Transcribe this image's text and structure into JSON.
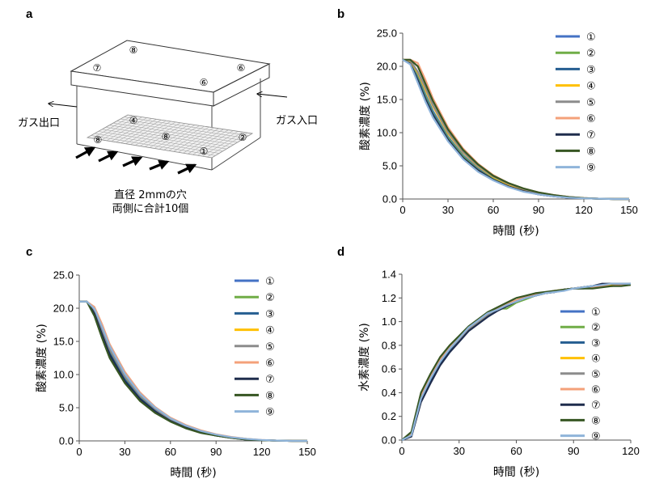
{
  "panels": [
    {
      "letter": "a"
    },
    {
      "letter": "b"
    },
    {
      "letter": "c"
    },
    {
      "letter": "d"
    }
  ],
  "diagram": {
    "gas_outlet": "ガス出口",
    "gas_inlet": "ガス入口",
    "caption_line1": "直径 2mmの穴",
    "caption_line2": "両側に合計10個",
    "lid_labels": [
      "⑦",
      "⑧",
      "⑥",
      "⑥"
    ],
    "floor_labels": [
      "⑧",
      "④",
      "⑧",
      "②",
      "①"
    ]
  },
  "legend_labels": [
    "①",
    "②",
    "③",
    "④",
    "⑤",
    "⑥",
    "⑦",
    "⑧",
    "⑨"
  ],
  "colors": [
    "#4472C4",
    "#70AD47",
    "#255E91",
    "#FFC000",
    "#8C8C8C",
    "#F4A17A",
    "#1F2D4D",
    "#375623",
    "#8FB4DA"
  ],
  "chart_data": [
    {
      "panel": "b",
      "type": "line",
      "xlabel": "時間 (秒)",
      "ylabel": "酸素濃度 (%)",
      "xlim": [
        0,
        150
      ],
      "ylim": [
        0,
        25
      ],
      "xticks": [
        "0",
        "30",
        "60",
        "90",
        "120",
        "150"
      ],
      "yticks": [
        "0.0",
        "5.0",
        "10.0",
        "15.0",
        "20.0",
        "25.0"
      ],
      "grid": false,
      "legend_position": "top-right",
      "x": [
        0,
        5,
        10,
        15,
        20,
        30,
        40,
        50,
        60,
        70,
        80,
        90,
        100,
        110,
        120,
        130,
        140,
        150
      ],
      "series": [
        {
          "name": "①",
          "values": [
            21,
            20.8,
            18.5,
            15.8,
            13.3,
            9.4,
            6.6,
            4.6,
            3.1,
            2.1,
            1.3,
            0.8,
            0.5,
            0.25,
            0.1,
            0.05,
            0,
            0
          ]
        },
        {
          "name": "②",
          "values": [
            21,
            20.6,
            18.2,
            15.5,
            13.0,
            9.2,
            6.4,
            4.4,
            3.0,
            2.0,
            1.3,
            0.8,
            0.5,
            0.25,
            0.1,
            0.05,
            0,
            0
          ]
        },
        {
          "name": "③",
          "values": [
            21,
            20.5,
            18.0,
            15.2,
            12.8,
            9.0,
            6.2,
            4.3,
            2.9,
            1.9,
            1.2,
            0.7,
            0.4,
            0.2,
            0.1,
            0.05,
            0,
            0
          ]
        },
        {
          "name": "④",
          "values": [
            21,
            20.8,
            19.0,
            16.5,
            14.0,
            9.9,
            7.0,
            4.9,
            3.3,
            2.2,
            1.4,
            0.9,
            0.55,
            0.3,
            0.1,
            0.05,
            0,
            0
          ]
        },
        {
          "name": "⑤",
          "values": [
            21,
            20.9,
            19.2,
            16.8,
            14.2,
            10.1,
            7.1,
            5.0,
            3.4,
            2.3,
            1.5,
            0.9,
            0.55,
            0.3,
            0.15,
            0.05,
            0,
            0
          ]
        },
        {
          "name": "⑥",
          "values": [
            21,
            21.0,
            20.5,
            18.0,
            15.2,
            10.8,
            7.6,
            5.3,
            3.6,
            2.4,
            1.6,
            1.0,
            0.6,
            0.3,
            0.15,
            0.05,
            0,
            0
          ]
        },
        {
          "name": "⑦",
          "values": [
            21,
            20.4,
            17.8,
            15.0,
            12.6,
            8.9,
            6.2,
            4.3,
            2.9,
            1.9,
            1.2,
            0.7,
            0.4,
            0.2,
            0.1,
            0.05,
            0,
            0
          ]
        },
        {
          "name": "⑧",
          "values": [
            21,
            21.0,
            20.0,
            17.4,
            14.8,
            10.5,
            7.4,
            5.2,
            3.5,
            2.4,
            1.6,
            1.0,
            0.6,
            0.3,
            0.15,
            0.05,
            0,
            0
          ]
        },
        {
          "name": "⑨",
          "values": [
            21,
            20.3,
            17.5,
            14.7,
            12.3,
            8.7,
            6.0,
            4.1,
            2.8,
            1.8,
            1.1,
            0.7,
            0.4,
            0.2,
            0.1,
            0.05,
            0,
            0
          ]
        }
      ]
    },
    {
      "panel": "c",
      "type": "line",
      "xlabel": "時間 (秒)",
      "ylabel": "酸素濃度 (%)",
      "xlim": [
        0,
        150
      ],
      "ylim": [
        0,
        25
      ],
      "xticks": [
        "0",
        "30",
        "60",
        "90",
        "120",
        "150"
      ],
      "yticks": [
        "0.0",
        "5.0",
        "10.0",
        "15.0",
        "20.0",
        "25.0"
      ],
      "grid": false,
      "legend_position": "top-right",
      "x": [
        0,
        5,
        10,
        15,
        20,
        30,
        40,
        50,
        60,
        70,
        80,
        90,
        100,
        110,
        120,
        130,
        140,
        150
      ],
      "series": [
        {
          "name": "①",
          "values": [
            21,
            21.0,
            19.5,
            16.5,
            13.5,
            9.5,
            6.7,
            4.7,
            3.2,
            2.1,
            1.4,
            0.9,
            0.5,
            0.25,
            0.1,
            0.05,
            0,
            0
          ]
        },
        {
          "name": "②",
          "values": [
            21,
            21.0,
            19.4,
            16.3,
            13.3,
            9.3,
            6.5,
            4.5,
            3.1,
            2.0,
            1.3,
            0.8,
            0.5,
            0.25,
            0.1,
            0.05,
            0,
            0
          ]
        },
        {
          "name": "③",
          "values": [
            21,
            21.0,
            19.3,
            16.2,
            13.2,
            9.2,
            6.4,
            4.5,
            3.0,
            2.0,
            1.3,
            0.8,
            0.5,
            0.2,
            0.1,
            0.05,
            0,
            0
          ]
        },
        {
          "name": "④",
          "values": [
            21,
            21.0,
            19.8,
            17.0,
            14.0,
            9.9,
            7.0,
            4.9,
            3.3,
            2.2,
            1.5,
            0.9,
            0.55,
            0.3,
            0.1,
            0.05,
            0,
            0
          ]
        },
        {
          "name": "⑤",
          "values": [
            21,
            21.0,
            19.7,
            16.8,
            13.8,
            9.7,
            6.8,
            4.8,
            3.2,
            2.2,
            1.4,
            0.9,
            0.5,
            0.25,
            0.1,
            0.05,
            0,
            0
          ]
        },
        {
          "name": "⑥",
          "values": [
            21,
            21.0,
            20.2,
            17.6,
            14.6,
            10.4,
            7.3,
            5.1,
            3.5,
            2.4,
            1.6,
            1.0,
            0.6,
            0.3,
            0.15,
            0.05,
            0,
            0
          ]
        },
        {
          "name": "⑦",
          "values": [
            21,
            21.0,
            19.2,
            16.0,
            13.0,
            9.0,
            6.3,
            4.4,
            3.0,
            2.0,
            1.3,
            0.8,
            0.45,
            0.2,
            0.1,
            0.05,
            0,
            0
          ]
        },
        {
          "name": "⑧",
          "values": [
            21,
            21.0,
            18.8,
            15.5,
            12.5,
            8.7,
            6.0,
            4.2,
            2.9,
            1.9,
            1.2,
            0.8,
            0.45,
            0.2,
            0.1,
            0.05,
            0,
            0
          ]
        },
        {
          "name": "⑨",
          "values": [
            21,
            21.0,
            19.9,
            17.2,
            14.3,
            10.1,
            7.1,
            5.0,
            3.4,
            2.3,
            1.5,
            0.95,
            0.55,
            0.3,
            0.15,
            0.05,
            0,
            0
          ]
        }
      ]
    },
    {
      "panel": "d",
      "type": "line",
      "xlabel": "時間 (秒)",
      "ylabel": "水素濃度 (%)",
      "xlim": [
        0,
        120
      ],
      "ylim": [
        0,
        1.4
      ],
      "xticks": [
        "0",
        "30",
        "60",
        "90",
        "120"
      ],
      "yticks": [
        "0.0",
        "0.2",
        "0.4",
        "0.6",
        "0.8",
        "1.0",
        "1.2",
        "1.4"
      ],
      "grid": false,
      "legend_position": "bottom-right",
      "x": [
        0,
        5,
        10,
        15,
        20,
        25,
        30,
        35,
        40,
        45,
        50,
        55,
        60,
        65,
        70,
        75,
        80,
        85,
        90,
        95,
        100,
        105,
        110,
        115,
        120
      ],
      "series": [
        {
          "name": "①",
          "values": [
            0,
            0.05,
            0.36,
            0.52,
            0.66,
            0.76,
            0.85,
            0.94,
            1.0,
            1.06,
            1.11,
            1.15,
            1.18,
            1.2,
            1.22,
            1.24,
            1.25,
            1.27,
            1.28,
            1.28,
            1.29,
            1.3,
            1.3,
            1.31,
            1.31
          ]
        },
        {
          "name": "②",
          "values": [
            0,
            0.06,
            0.38,
            0.54,
            0.68,
            0.78,
            0.86,
            0.95,
            1.0,
            1.07,
            1.11,
            1.11,
            1.16,
            1.19,
            1.22,
            1.24,
            1.25,
            1.27,
            1.28,
            1.29,
            1.3,
            1.3,
            1.31,
            1.31,
            1.32
          ]
        },
        {
          "name": "③",
          "values": [
            0,
            0.04,
            0.34,
            0.5,
            0.65,
            0.75,
            0.84,
            0.93,
            0.99,
            1.05,
            1.1,
            1.14,
            1.17,
            1.2,
            1.22,
            1.24,
            1.25,
            1.27,
            1.28,
            1.29,
            1.3,
            1.3,
            1.31,
            1.31,
            1.31
          ]
        },
        {
          "name": "④",
          "values": [
            0,
            0.05,
            0.37,
            0.53,
            0.67,
            0.77,
            0.86,
            0.94,
            1.0,
            1.06,
            1.11,
            1.15,
            1.18,
            1.21,
            1.23,
            1.24,
            1.26,
            1.27,
            1.28,
            1.29,
            1.29,
            1.3,
            1.31,
            1.31,
            1.32
          ]
        },
        {
          "name": "⑤",
          "values": [
            0,
            0.05,
            0.36,
            0.53,
            0.67,
            0.77,
            0.85,
            0.94,
            1.0,
            1.06,
            1.1,
            1.14,
            1.18,
            1.2,
            1.22,
            1.24,
            1.25,
            1.27,
            1.28,
            1.28,
            1.29,
            1.3,
            1.3,
            1.31,
            1.31
          ]
        },
        {
          "name": "⑥",
          "values": [
            0,
            0.05,
            0.37,
            0.54,
            0.68,
            0.78,
            0.86,
            0.95,
            1.01,
            1.07,
            1.11,
            1.15,
            1.18,
            1.21,
            1.23,
            1.24,
            1.26,
            1.27,
            1.28,
            1.29,
            1.29,
            1.3,
            1.3,
            1.31,
            1.31
          ]
        },
        {
          "name": "⑦",
          "values": [
            0,
            0.03,
            0.32,
            0.48,
            0.63,
            0.74,
            0.83,
            0.92,
            0.98,
            1.04,
            1.09,
            1.13,
            1.17,
            1.2,
            1.22,
            1.24,
            1.25,
            1.27,
            1.28,
            1.29,
            1.3,
            1.32,
            1.32,
            1.32,
            1.32
          ]
        },
        {
          "name": "⑧",
          "values": [
            0,
            0.07,
            0.4,
            0.56,
            0.7,
            0.8,
            0.88,
            0.96,
            1.02,
            1.08,
            1.12,
            1.16,
            1.2,
            1.22,
            1.24,
            1.25,
            1.26,
            1.27,
            1.28,
            1.28,
            1.28,
            1.29,
            1.3,
            1.3,
            1.31
          ]
        },
        {
          "name": "⑨",
          "values": [
            0,
            0.04,
            0.35,
            0.52,
            0.66,
            0.77,
            0.86,
            0.95,
            1.01,
            1.07,
            1.1,
            1.14,
            1.17,
            1.2,
            1.22,
            1.24,
            1.25,
            1.26,
            1.28,
            1.29,
            1.3,
            1.31,
            1.32,
            1.32,
            1.32
          ]
        }
      ]
    }
  ]
}
